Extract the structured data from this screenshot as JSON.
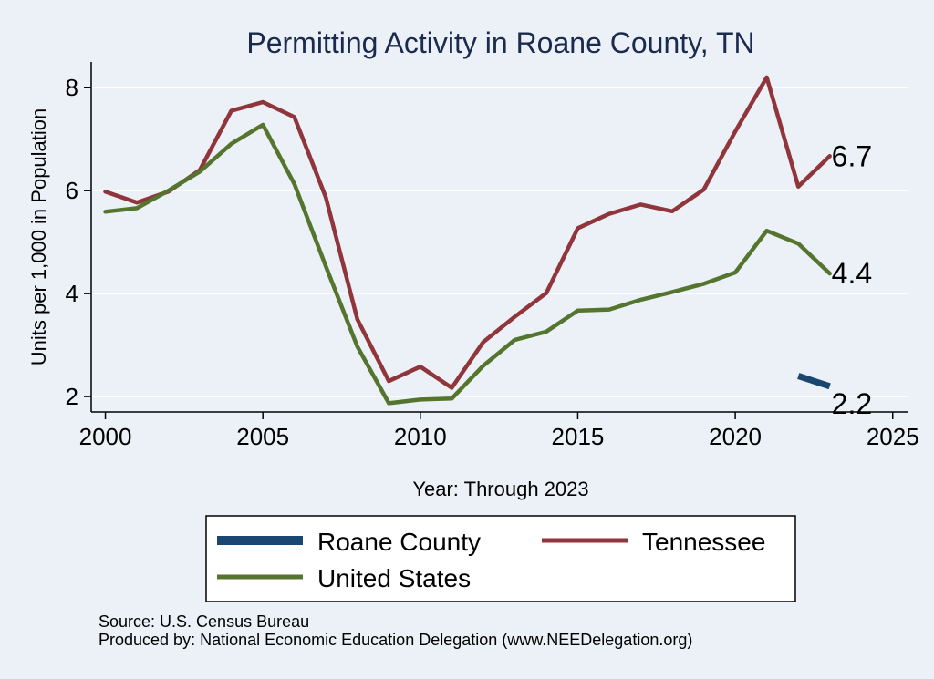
{
  "chart_data": {
    "type": "line",
    "title": "Permitting Activity in Roane County, TN",
    "xlabel": "Year: Through 2023",
    "ylabel": "Units per 1,000 in Population",
    "xlim": [
      2000,
      2025
    ],
    "ylim": [
      1.7,
      8.5
    ],
    "x_ticks": [
      2000,
      2005,
      2010,
      2015,
      2020,
      2025
    ],
    "y_ticks": [
      2,
      4,
      6,
      8
    ],
    "x_tick_labels": [
      "2000",
      "2005",
      "2010",
      "2015",
      "2020",
      "2025"
    ],
    "y_tick_labels": [
      "2",
      "4",
      "6",
      "8"
    ],
    "grid": true,
    "series": [
      {
        "name": "Roane County",
        "color": "#1a476f",
        "x": [
          2022,
          2023
        ],
        "values": [
          2.4,
          2.2
        ],
        "end_label": "2.2"
      },
      {
        "name": "Tennessee",
        "color": "#90353b",
        "x": [
          2000,
          2001,
          2002,
          2003,
          2004,
          2005,
          2006,
          2007,
          2008,
          2009,
          2010,
          2011,
          2012,
          2013,
          2014,
          2015,
          2016,
          2017,
          2018,
          2019,
          2020,
          2021,
          2022,
          2023
        ],
        "values": [
          5.98,
          5.77,
          5.98,
          6.4,
          7.55,
          7.72,
          7.43,
          5.87,
          3.5,
          2.3,
          2.58,
          2.17,
          3.06,
          3.55,
          4.01,
          5.27,
          5.55,
          5.73,
          5.6,
          6.02,
          7.15,
          8.2,
          6.08,
          6.67
        ],
        "end_label": "6.7"
      },
      {
        "name": "United States",
        "color": "#55752f",
        "x": [
          2000,
          2001,
          2002,
          2003,
          2004,
          2005,
          2006,
          2007,
          2008,
          2009,
          2010,
          2011,
          2012,
          2013,
          2014,
          2015,
          2016,
          2017,
          2018,
          2019,
          2020,
          2021,
          2022,
          2023
        ],
        "values": [
          5.59,
          5.66,
          6.0,
          6.37,
          6.91,
          7.28,
          6.13,
          4.53,
          2.97,
          1.87,
          1.94,
          1.96,
          2.6,
          3.1,
          3.26,
          3.67,
          3.69,
          3.88,
          4.03,
          4.19,
          4.41,
          5.22,
          4.97,
          4.39
        ],
        "end_label": "4.4"
      }
    ],
    "legend": {
      "placement": "bottom",
      "order": [
        "Roane County",
        "Tennessee",
        "United States"
      ]
    }
  },
  "footer": {
    "source": "Source: U.S. Census Bureau",
    "produced_by": "Produced by: National Economic Education Delegation (www.NEEDelegation.org)"
  }
}
